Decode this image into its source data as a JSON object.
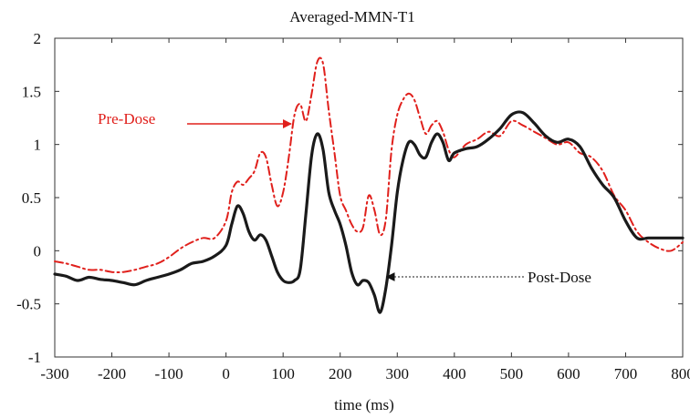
{
  "chart_data": {
    "type": "line",
    "title": "Averaged-MMN-T1",
    "xlabel": "time (ms)",
    "ylabel": "",
    "xlim": [
      -300,
      800
    ],
    "ylim": [
      -1,
      2
    ],
    "xticks": [
      -300,
      -200,
      -100,
      0,
      100,
      200,
      300,
      400,
      500,
      600,
      700,
      800
    ],
    "xtick_labels": [
      "-300",
      "-200",
      "-100",
      "0",
      "100",
      "200",
      "300",
      "400",
      "500",
      "600",
      "700",
      "800"
    ],
    "yticks": [
      -1,
      -0.5,
      0,
      0.5,
      1,
      1.5,
      2
    ],
    "ytick_labels": [
      "-1",
      "-0.5",
      "0",
      "0.5",
      "1",
      "1.5",
      "2"
    ],
    "grid": false,
    "series": [
      {
        "name": "Pre-Dose",
        "color": "#e0201c",
        "style": "dash-dot",
        "x": [
          -300,
          -280,
          -260,
          -240,
          -220,
          -200,
          -180,
          -160,
          -140,
          -120,
          -100,
          -80,
          -60,
          -40,
          -20,
          0,
          10,
          20,
          30,
          40,
          50,
          60,
          70,
          80,
          90,
          100,
          110,
          120,
          130,
          140,
          150,
          160,
          170,
          180,
          190,
          200,
          210,
          220,
          230,
          240,
          250,
          260,
          270,
          280,
          290,
          300,
          310,
          320,
          330,
          340,
          350,
          360,
          370,
          380,
          390,
          400,
          420,
          440,
          460,
          480,
          500,
          520,
          540,
          560,
          580,
          600,
          620,
          640,
          660,
          680,
          700,
          720,
          740,
          760,
          780,
          800
        ],
        "y": [
          -0.1,
          -0.12,
          -0.15,
          -0.18,
          -0.18,
          -0.2,
          -0.2,
          -0.18,
          -0.15,
          -0.12,
          -0.06,
          0.02,
          0.08,
          0.12,
          0.12,
          0.28,
          0.55,
          0.65,
          0.62,
          0.68,
          0.75,
          0.92,
          0.88,
          0.62,
          0.42,
          0.55,
          0.88,
          1.28,
          1.38,
          1.22,
          1.48,
          1.78,
          1.76,
          1.32,
          0.92,
          0.52,
          0.38,
          0.25,
          0.18,
          0.22,
          0.52,
          0.38,
          0.15,
          0.3,
          0.95,
          1.28,
          1.42,
          1.48,
          1.42,
          1.25,
          1.1,
          1.18,
          1.22,
          1.12,
          0.95,
          0.88,
          1.0,
          1.05,
          1.12,
          1.08,
          1.22,
          1.18,
          1.12,
          1.06,
          1.0,
          1.02,
          0.92,
          0.88,
          0.75,
          0.52,
          0.38,
          0.18,
          0.08,
          0.02,
          0.0,
          0.08
        ]
      },
      {
        "name": "Post-Dose",
        "color": "#1a1a1a",
        "style": "solid",
        "x": [
          -300,
          -280,
          -260,
          -240,
          -220,
          -200,
          -180,
          -160,
          -140,
          -120,
          -100,
          -80,
          -60,
          -40,
          -20,
          0,
          10,
          20,
          30,
          40,
          50,
          60,
          70,
          80,
          90,
          100,
          110,
          120,
          130,
          140,
          150,
          160,
          170,
          180,
          190,
          200,
          210,
          220,
          230,
          240,
          250,
          260,
          270,
          280,
          290,
          300,
          310,
          320,
          330,
          340,
          350,
          360,
          370,
          380,
          390,
          400,
          420,
          440,
          460,
          480,
          500,
          520,
          540,
          560,
          580,
          600,
          620,
          640,
          660,
          680,
          700,
          720,
          740,
          760,
          780,
          800
        ],
        "y": [
          -0.22,
          -0.24,
          -0.28,
          -0.25,
          -0.27,
          -0.28,
          -0.3,
          -0.32,
          -0.28,
          -0.25,
          -0.22,
          -0.18,
          -0.12,
          -0.1,
          -0.05,
          0.05,
          0.25,
          0.42,
          0.35,
          0.18,
          0.1,
          0.15,
          0.1,
          -0.05,
          -0.2,
          -0.28,
          -0.3,
          -0.28,
          -0.18,
          0.35,
          0.9,
          1.1,
          0.95,
          0.55,
          0.38,
          0.25,
          0.05,
          -0.2,
          -0.32,
          -0.28,
          -0.3,
          -0.42,
          -0.58,
          -0.35,
          0.05,
          0.55,
          0.85,
          1.02,
          1.0,
          0.9,
          0.88,
          1.02,
          1.1,
          1.02,
          0.85,
          0.92,
          0.96,
          0.98,
          1.05,
          1.15,
          1.28,
          1.3,
          1.2,
          1.08,
          1.02,
          1.05,
          0.98,
          0.78,
          0.62,
          0.5,
          0.28,
          0.12,
          0.12,
          0.12,
          0.12,
          0.12
        ]
      }
    ],
    "annotations": [
      {
        "text": "Pre-Dose",
        "color": "#e0201c",
        "arrow_to": [
          130,
          1.2
        ]
      },
      {
        "text": "Post-Dose",
        "color": "#1a1a1a",
        "arrow_to": [
          275,
          -0.3
        ]
      }
    ]
  }
}
